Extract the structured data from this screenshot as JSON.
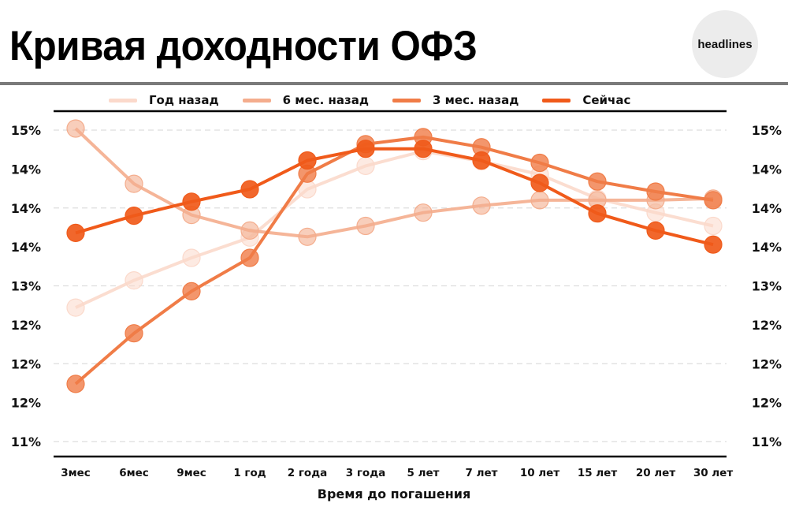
{
  "header": {
    "title": "Кривая доходности ОФЗ",
    "logo_text": "headlines"
  },
  "watermark": "dlines",
  "legend": [
    {
      "label": "Год назад",
      "color": "#fbd9cb"
    },
    {
      "label": "6 мес. назад",
      "color": "#f4ad8d"
    },
    {
      "label": "3 мес. назад",
      "color": "#f07c47"
    },
    {
      "label": "Сейчас",
      "color": "#f05a1a"
    }
  ],
  "chart_data": {
    "type": "line",
    "title": "Кривая доходности ОФЗ",
    "xlabel": "Время до погашения",
    "ylabel": "",
    "categories": [
      "3мес",
      "6мес",
      "9мес",
      "1 год",
      "2 года",
      "3 года",
      "5 лет",
      "7 лет",
      "10 лет",
      "15 лет",
      "20 лет",
      "30 лет"
    ],
    "y_tick_labels": [
      "15%",
      "14%",
      "14%",
      "14%",
      "13%",
      "12%",
      "12%",
      "12%",
      "11%"
    ],
    "y_ticks": [
      15.0,
      14.5,
      14.0,
      13.5,
      13.0,
      12.5,
      12.0,
      11.5,
      11.0
    ],
    "ylim": [
      11.0,
      15.0
    ],
    "grid": "horizontal dashed at 15, 14, 13, 12, 11",
    "legend_position": "top",
    "dual_y_axis_labels": true,
    "series": [
      {
        "name": "Год назад",
        "color": "#fbd9cb",
        "values": [
          12.72,
          13.07,
          13.36,
          13.62,
          14.24,
          14.54,
          14.73,
          14.6,
          14.43,
          14.12,
          13.94,
          13.77
        ]
      },
      {
        "name": "6 мес. назад",
        "color": "#f4ad8d",
        "values": [
          15.02,
          14.31,
          13.91,
          13.71,
          13.63,
          13.77,
          13.94,
          14.03,
          14.1,
          14.1,
          14.1,
          14.12
        ]
      },
      {
        "name": "3 мес. назад",
        "color": "#f07c47",
        "values": [
          11.74,
          12.39,
          12.93,
          13.36,
          14.44,
          14.82,
          14.91,
          14.78,
          14.58,
          14.34,
          14.21,
          14.1
        ]
      },
      {
        "name": "Сейчас",
        "color": "#f05a1a",
        "values": [
          13.68,
          13.9,
          14.08,
          14.24,
          14.61,
          14.76,
          14.76,
          14.61,
          14.32,
          13.93,
          13.71,
          13.53
        ]
      }
    ]
  }
}
